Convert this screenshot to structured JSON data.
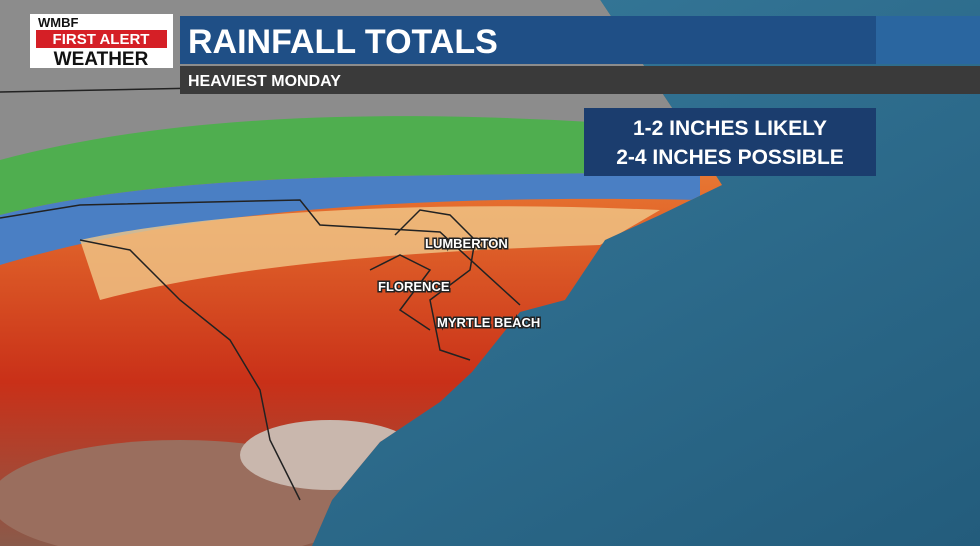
{
  "logo": {
    "station": "WMBF",
    "brand": "FIRST ALERT",
    "product": "WEATHER"
  },
  "header": {
    "title": "RAINFALL TOTALS",
    "subtitle": "HEAVIEST MONDAY"
  },
  "info_box": {
    "lines": [
      "1-2 INCHES LIKELY",
      "2-4 INCHES POSSIBLE"
    ]
  },
  "cities": [
    {
      "label": "LUMBERTON"
    },
    {
      "label": "FLORENCE"
    },
    {
      "label": "MYRTLE BEACH"
    }
  ]
}
